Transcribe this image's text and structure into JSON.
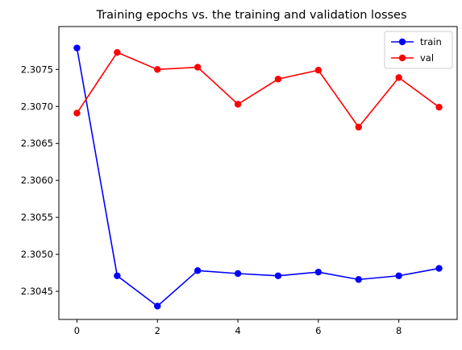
{
  "chart_data": {
    "type": "line",
    "title": "Training epochs vs. the training and validation losses",
    "xlabel": "",
    "ylabel": "",
    "x": [
      0,
      1,
      2,
      3,
      4,
      5,
      6,
      7,
      8,
      9
    ],
    "xlim": [
      -0.45,
      9.45
    ],
    "ylim": [
      2.30412,
      2.30808
    ],
    "xticks": [
      0,
      2,
      4,
      6,
      8
    ],
    "yticks": [
      2.3045,
      2.305,
      2.3055,
      2.306,
      2.3065,
      2.307,
      2.3075
    ],
    "xtick_labels": [
      "0",
      "2",
      "4",
      "6",
      "8"
    ],
    "ytick_labels": [
      "2.3045",
      "2.3050",
      "2.3055",
      "2.3060",
      "2.3065",
      "2.3070",
      "2.3075"
    ],
    "grid": false,
    "legend_position": "upper right",
    "series": [
      {
        "name": "train",
        "color": "#0000ff",
        "marker": "circle",
        "values": [
          2.30779,
          2.30471,
          2.3043,
          2.30478,
          2.30474,
          2.30471,
          2.30476,
          2.30466,
          2.30471,
          2.30481
        ]
      },
      {
        "name": "val",
        "color": "#ff0000",
        "marker": "circle",
        "values": [
          2.30691,
          2.30773,
          2.3075,
          2.30753,
          2.30703,
          2.30737,
          2.30749,
          2.30672,
          2.30739,
          2.30699
        ]
      }
    ]
  }
}
